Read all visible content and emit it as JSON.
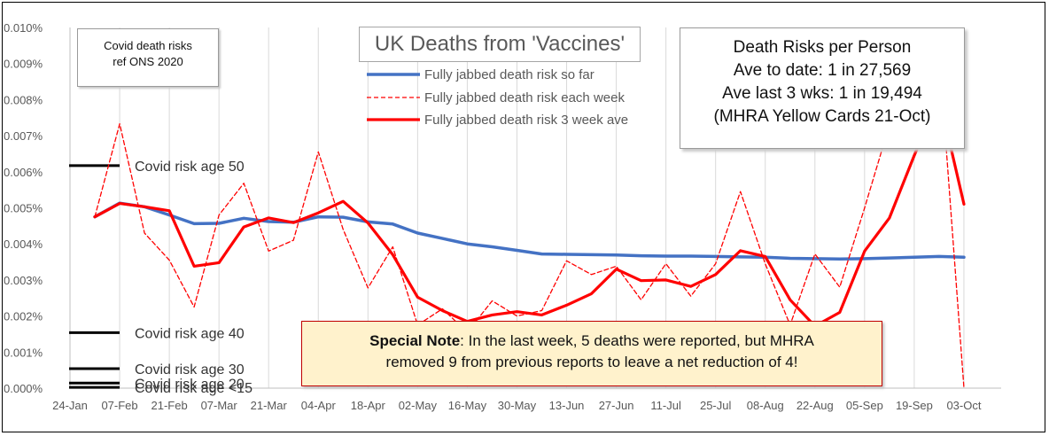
{
  "chart_data": {
    "type": "line",
    "title": "UK Deaths from 'Vaccines'",
    "x_labels": [
      "24-Jan",
      "07-Feb",
      "21-Feb",
      "07-Mar",
      "21-Mar",
      "04-Apr",
      "18-Apr",
      "02-May",
      "16-May",
      "30-May",
      "13-Jun",
      "27-Jun",
      "11-Jul",
      "25-Jul",
      "08-Aug",
      "22-Aug",
      "05-Sep",
      "19-Sep",
      "03-Oct"
    ],
    "y_ticks": [
      "0.000%",
      "0.001%",
      "0.002%",
      "0.003%",
      "0.004%",
      "0.005%",
      "0.006%",
      "0.007%",
      "0.008%",
      "0.009%",
      "0.010%"
    ],
    "ylim": [
      0,
      0.01
    ],
    "grid": "vertical",
    "legend_position": "top-center",
    "weeks": [
      "07-Feb",
      "14-Feb",
      "21-Feb",
      "28-Feb",
      "07-Mar",
      "14-Mar",
      "21-Mar",
      "28-Mar",
      "04-Apr",
      "11-Apr",
      "18-Apr",
      "25-Apr",
      "02-May",
      "09-May",
      "16-May",
      "23-May",
      "30-May",
      "06-Jun",
      "13-Jun",
      "20-Jun",
      "27-Jun",
      "04-Jul",
      "11-Jul",
      "18-Jul",
      "25-Jul",
      "01-Aug",
      "08-Aug",
      "15-Aug",
      "22-Aug",
      "29-Aug",
      "05-Sep",
      "12-Sep",
      "19-Sep",
      "26-Sep",
      "03-Oct",
      "10-Oct"
    ],
    "series": [
      {
        "name": "Fully jabbed death risk so far",
        "color": "#4472c4",
        "style": "solid",
        "values": [
          0.00475,
          0.00513,
          0.00503,
          0.0048,
          0.00456,
          0.00457,
          0.00471,
          0.00462,
          0.0046,
          0.00475,
          0.00474,
          0.00461,
          0.00455,
          0.0043,
          0.00415,
          0.004,
          0.00392,
          0.00382,
          0.00372,
          0.00371,
          0.0037,
          0.00369,
          0.00367,
          0.00366,
          0.00366,
          0.00365,
          0.00364,
          0.00363,
          0.0036,
          0.00359,
          0.00358,
          0.00359,
          0.00361,
          0.00363,
          0.00365,
          0.00363
        ]
      },
      {
        "name": "Fully jabbed death risk each week",
        "color": "#ff0000",
        "style": "dashed",
        "values": [
          0.00475,
          0.00733,
          0.0043,
          0.00355,
          0.00225,
          0.0048,
          0.00568,
          0.0038,
          0.0041,
          0.00655,
          0.0044,
          0.00278,
          0.00392,
          0.00175,
          0.0022,
          0.00155,
          0.00242,
          0.002,
          0.00215,
          0.00353,
          0.00315,
          0.00338,
          0.00245,
          0.00345,
          0.00255,
          0.00345,
          0.00545,
          0.00345,
          0.00175,
          0.00372,
          0.0028,
          0.005,
          0.0073,
          0.00755,
          0.00935,
          0.0
        ]
      },
      {
        "name": "Fully jabbed death risk 3 week ave",
        "color": "#ff0000",
        "style": "solid-thick",
        "values": [
          0.00475,
          0.00512,
          0.00503,
          0.00492,
          0.00338,
          0.00348,
          0.00447,
          0.00472,
          0.00459,
          0.00486,
          0.00518,
          0.00458,
          0.0037,
          0.00252,
          0.00215,
          0.00185,
          0.00203,
          0.00212,
          0.00203,
          0.0023,
          0.00262,
          0.0033,
          0.00298,
          0.003,
          0.00282,
          0.00315,
          0.00381,
          0.00365,
          0.00245,
          0.00172,
          0.0021,
          0.0038,
          0.00472,
          0.00645,
          0.00808,
          0.0051
        ]
      }
    ],
    "reference_lines": [
      {
        "label": "Covid risk age 50",
        "value": 0.00617
      },
      {
        "label": "Covid risk age 40",
        "value": 0.00154
      },
      {
        "label": "Covid risk age 30",
        "value": 0.00054
      },
      {
        "label": "Covid risk age 20",
        "value": 0.00014
      },
      {
        "label": "Covid risk age <15",
        "value": 2e-05
      }
    ]
  },
  "ref_box": {
    "line1": "Covid death risks",
    "line2": "ref ONS 2020"
  },
  "risk_box": {
    "line1": "Death Risks per Person",
    "line2": "Ave to date: 1 in 27,569",
    "line3": "Ave last 3 wks: 1 in 19,494",
    "line4": "(MHRA Yellow Cards 21-Oct)"
  },
  "note": {
    "label": "Special Note",
    "text": ": In the last week, 5 deaths were reported, but MHRA",
    "line2": "removed 9 from previous reports to leave a net reduction of 4!"
  }
}
